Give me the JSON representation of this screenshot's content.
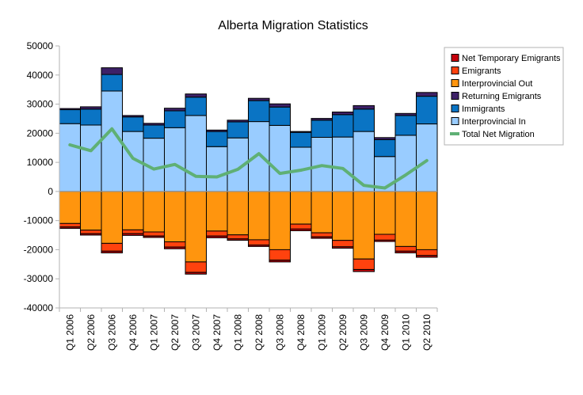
{
  "chart_data": {
    "type": "bar",
    "title": "Alberta Migration Statistics",
    "xlabel": "",
    "ylabel": "",
    "ylim": [
      -40000,
      50000
    ],
    "y_ticks": [
      50000,
      40000,
      30000,
      20000,
      10000,
      0,
      -10000,
      -20000,
      -30000,
      -40000
    ],
    "y_tick_labels": [
      "50000",
      "40000",
      "30000",
      "20000",
      "10000",
      "0",
      "-10000",
      "-20000",
      "-30000",
      "-40000"
    ],
    "grid": false,
    "stacked": true,
    "legend_position": "right",
    "categories": [
      "Q1 2006",
      "Q2 2006",
      "Q3 2006",
      "Q4 2006",
      "Q1 2007",
      "Q2 2007",
      "Q3 2007",
      "Q4 2007",
      "Q1 2008",
      "Q2 2008",
      "Q3 2008",
      "Q4 2008",
      "Q1 2009",
      "Q2 2009",
      "Q3 2009",
      "Q4 2009",
      "Q1 2010",
      "Q2 2010"
    ],
    "series": [
      {
        "name": "Interprovincial In",
        "color": "#99ccff",
        "values": [
          23300,
          22800,
          34500,
          20600,
          18300,
          21900,
          26100,
          15400,
          18400,
          24000,
          22700,
          15200,
          18600,
          18700,
          20600,
          12000,
          19300,
          23200
        ]
      },
      {
        "name": "Immigrants",
        "color": "#0a74c4",
        "values": [
          4800,
          5500,
          5700,
          5000,
          4500,
          5800,
          6300,
          5200,
          5500,
          7200,
          6300,
          5100,
          5900,
          7700,
          7700,
          5800,
          6800,
          9500
        ]
      },
      {
        "name": "Returning Emigrants",
        "color": "#3d2167",
        "values": [
          400,
          800,
          2300,
          500,
          600,
          900,
          1100,
          500,
          600,
          800,
          1100,
          300,
          600,
          900,
          1200,
          700,
          700,
          1300
        ]
      },
      {
        "name": "Interprovincial Out",
        "color": "#ff950e",
        "values": [
          -11000,
          -13300,
          -17800,
          -13200,
          -13900,
          -17300,
          -24200,
          -13600,
          -14900,
          -16600,
          -20000,
          -11200,
          -14200,
          -16800,
          -23200,
          -14700,
          -18900,
          -20000
        ]
      },
      {
        "name": "Emigrants",
        "color": "#ff420e",
        "values": [
          -1200,
          -1200,
          -2700,
          -1300,
          -1400,
          -1800,
          -3600,
          -1700,
          -1400,
          -1800,
          -3600,
          -1700,
          -1400,
          -2200,
          -3600,
          -2000,
          -1600,
          -2000
        ]
      },
      {
        "name": "Net Temporary Emigrants",
        "color": "#c5000b",
        "values": [
          -500,
          -500,
          -600,
          -600,
          -500,
          -600,
          -600,
          -600,
          -500,
          -500,
          -600,
          -600,
          -500,
          -500,
          -700,
          -500,
          -600,
          -600
        ]
      },
      {
        "name": "Total Net Migration",
        "type": "line",
        "color": "#5fb075",
        "values": [
          16000,
          14000,
          21500,
          11400,
          7700,
          9300,
          5200,
          5000,
          7600,
          13000,
          6200,
          7300,
          8900,
          7900,
          2100,
          1200,
          5700,
          10600
        ]
      }
    ],
    "legend_order": [
      "Net Temporary Emigrants",
      "Emigrants",
      "Interprovincial Out",
      "Returning Emigrants",
      "Immigrants",
      "Interprovincial In",
      "Total Net Migration"
    ]
  }
}
